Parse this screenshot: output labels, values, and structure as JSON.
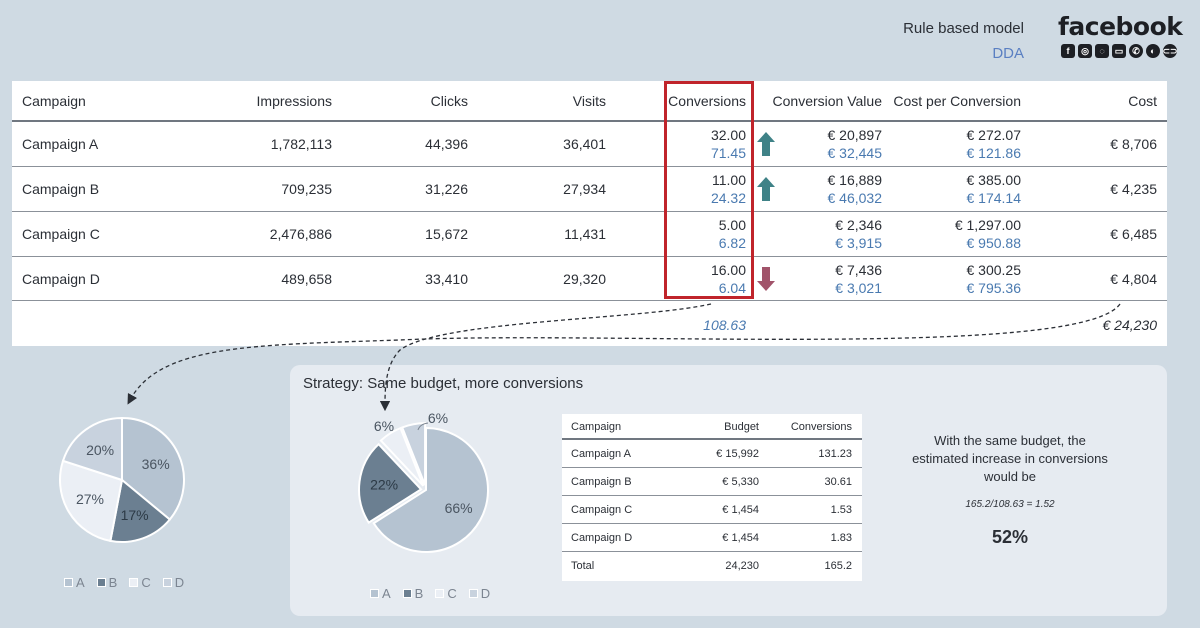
{
  "header": {
    "model_label": "Rule based model",
    "dda_label": "DDA"
  },
  "brand": {
    "name": "facebook"
  },
  "colors": {
    "highlight": "#c0242b",
    "dda_text": "#4a7ab0",
    "up_arrow": "#3f8287",
    "down_arrow": "#a1536a",
    "pie_a": "#b5c3d1",
    "pie_b": "#6b7f91",
    "pie_c": "#ebeff5",
    "pie_d": "#c8d2de"
  },
  "main_table": {
    "headers": [
      "Campaign",
      "Impressions",
      "Clicks",
      "Visits",
      "Conversions",
      "Conversion Value",
      "Cost per Conversion",
      "Cost"
    ],
    "rows": [
      {
        "campaign": "Campaign A",
        "impressions": "1,782,113",
        "clicks": "44,396",
        "visits": "36,401",
        "conversions": "32.00",
        "conversions_dda": "71.45",
        "conv_value": "€ 20,897",
        "conv_value_dda": "€ 32,445",
        "cpc": "€ 272.07",
        "cpc_dda": "€ 121.86",
        "cost": "€ 8,706",
        "trend": "up"
      },
      {
        "campaign": "Campaign B",
        "impressions": "709,235",
        "clicks": "31,226",
        "visits": "27,934",
        "conversions": "11.00",
        "conversions_dda": "24.32",
        "conv_value": "€ 16,889",
        "conv_value_dda": "€ 46,032",
        "cpc": "€ 385.00",
        "cpc_dda": "€ 174.14",
        "cost": "€ 4,235",
        "trend": "up"
      },
      {
        "campaign": "Campaign C",
        "impressions": "2,476,886",
        "clicks": "15,672",
        "visits": "11,431",
        "conversions": "5.00",
        "conversions_dda": "6.82",
        "conv_value": "€ 2,346",
        "conv_value_dda": "€ 3,915",
        "cpc": "€ 1,297.00",
        "cpc_dda": "€ 950.88",
        "cost": "€ 6,485",
        "trend": "none"
      },
      {
        "campaign": "Campaign D",
        "impressions": "489,658",
        "clicks": "33,410",
        "visits": "29,320",
        "conversions": "16.00",
        "conversions_dda": "6.04",
        "conv_value": "€ 7,436",
        "conv_value_dda": "€ 3,021",
        "cpc": "€ 300.25",
        "cpc_dda": "€ 795.36",
        "cost": "€ 4,804",
        "trend": "down"
      }
    ],
    "totals": {
      "conversions": "108.63",
      "cost": "€ 24,230"
    }
  },
  "pie_current": {
    "slices": [
      {
        "key": "A",
        "label": "36%",
        "value": 36
      },
      {
        "key": "B",
        "label": "17%",
        "value": 17
      },
      {
        "key": "C",
        "label": "27%",
        "value": 27
      },
      {
        "key": "D",
        "label": "20%",
        "value": 20
      }
    ]
  },
  "legend": [
    "A",
    "B",
    "C",
    "D"
  ],
  "strategy": {
    "title": "Strategy: Same budget, more conversions",
    "pie": {
      "slices": [
        {
          "key": "A",
          "label": "66%",
          "value": 66
        },
        {
          "key": "B",
          "label": "22%",
          "value": 22
        },
        {
          "key": "C",
          "label": "6%",
          "value": 6
        },
        {
          "key": "D",
          "label": "6%",
          "value": 6
        }
      ]
    },
    "budget_table": {
      "headers": [
        "Campaign",
        "Budget",
        "Conversions"
      ],
      "rows": [
        {
          "campaign": "Campaign A",
          "budget": "€ 15,992",
          "conversions": "131.23"
        },
        {
          "campaign": "Campaign B",
          "budget": "€ 5,330",
          "conversions": "30.61"
        },
        {
          "campaign": "Campaign C",
          "budget": "€ 1,454",
          "conversions": "1.53"
        },
        {
          "campaign": "Campaign D",
          "budget": "€ 1,454",
          "conversions": "1.83"
        },
        {
          "campaign": "Total",
          "budget": "24,230",
          "conversions": "165.2"
        }
      ]
    },
    "summary_text": "With the same budget, the estimated increase in conversions would be",
    "formula": "165.2/108.63 = 1.52",
    "result": "52%"
  }
}
